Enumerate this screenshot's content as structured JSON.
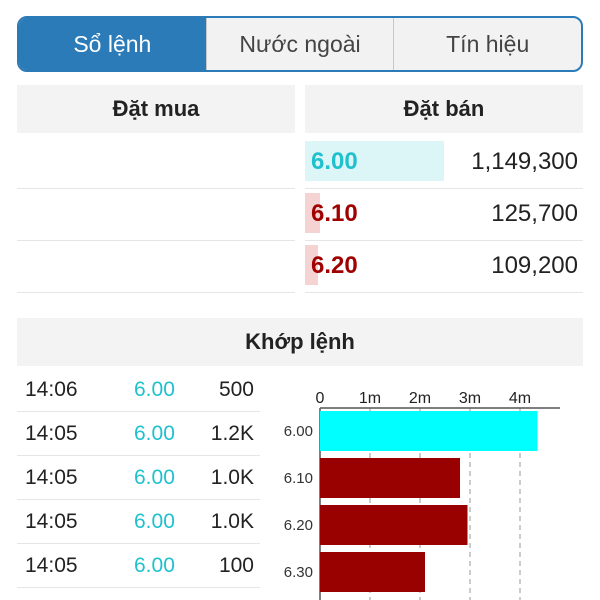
{
  "tabs": [
    {
      "label": "Sổ lệnh",
      "active": true
    },
    {
      "label": "Nước ngoài",
      "active": false
    },
    {
      "label": "Tín hiệu",
      "active": false
    }
  ],
  "order_book": {
    "buy_header": "Đặt mua",
    "sell_header": "Đặt bán",
    "buy_rows": [
      {},
      {},
      {}
    ],
    "sell_rows": [
      {
        "price": "6.00",
        "volume": "1,149,300",
        "bar_fraction": 0.5,
        "color": "#1fc1cf",
        "bar_color": "#dcf5f7"
      },
      {
        "price": "6.10",
        "volume": "125,700",
        "bar_fraction": 0.055,
        "color": "#a00000",
        "bar_color": "#f6d3d3"
      },
      {
        "price": "6.20",
        "volume": "109,200",
        "bar_fraction": 0.048,
        "color": "#a00000",
        "bar_color": "#f6d3d3"
      }
    ]
  },
  "matched": {
    "header": "Khớp lệnh",
    "trades": [
      {
        "time": "14:06",
        "price": "6.00",
        "volume": "500"
      },
      {
        "time": "14:05",
        "price": "6.00",
        "volume": "1.2K"
      },
      {
        "time": "14:05",
        "price": "6.00",
        "volume": "1.0K"
      },
      {
        "time": "14:05",
        "price": "6.00",
        "volume": "1.0K"
      },
      {
        "time": "14:05",
        "price": "6.00",
        "volume": "100"
      }
    ]
  },
  "chart_data": {
    "type": "bar",
    "orientation": "horizontal",
    "categories": [
      "6.00",
      "6.10",
      "6.20",
      "6.30"
    ],
    "values": [
      4.35,
      2.8,
      2.95,
      2.1
    ],
    "colors": [
      "#00ffff",
      "#990000",
      "#990000",
      "#990000"
    ],
    "x_ticks": [
      "0",
      "1m",
      "2m",
      "3m",
      "4m"
    ],
    "xlim": [
      0,
      4.8
    ],
    "grid": "vertical-dashed"
  },
  "colors": {
    "accent": "#2b7bb9",
    "cyan": "#1fc1cf",
    "red": "#a00000"
  }
}
